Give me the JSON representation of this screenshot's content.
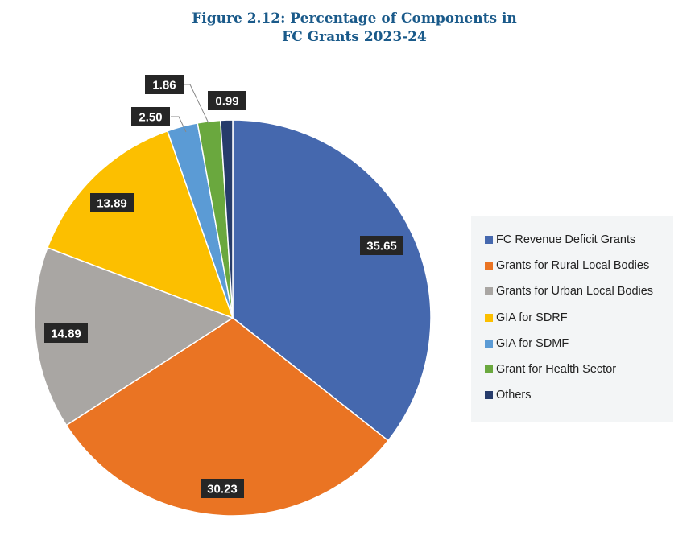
{
  "chart_data": {
    "type": "pie",
    "title_line1": "Figure 2.12: Percentage of Components in",
    "title_line2": "FC Grants 2023-24",
    "categories": [
      "FC Revenue Deficit Grants",
      "Grants for Rural Local Bodies",
      "Grants for Urban Local Bodies",
      "GIA for SDRF",
      "GIA for SDMF",
      "Grant for Health Sector",
      "Others"
    ],
    "values": [
      35.65,
      30.23,
      14.89,
      13.89,
      2.5,
      1.86,
      0.99
    ],
    "labels": [
      "35.65",
      "30.23",
      "14.89",
      "13.89",
      "2.50",
      "1.86",
      "0.99"
    ],
    "colors": [
      "#4568ae",
      "#ea7423",
      "#a9a6a3",
      "#fcbf00",
      "#5b9bd5",
      "#6aa83e",
      "#263c6b"
    ],
    "start_angle": "12 o'clock",
    "direction": "clockwise",
    "legend_position": "right"
  }
}
